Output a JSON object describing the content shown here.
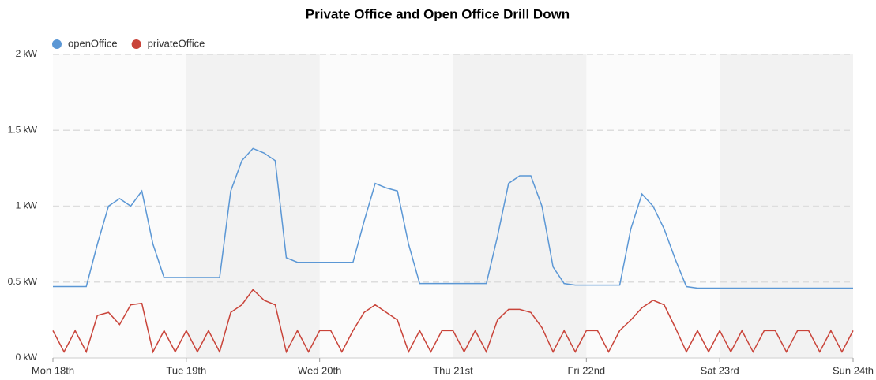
{
  "chart_data": {
    "type": "line",
    "title": "Private Office and Open Office Drill Down",
    "x": [
      0,
      2,
      4,
      6,
      8,
      10,
      12,
      14,
      16,
      18,
      20,
      22,
      24,
      26,
      28,
      30,
      32,
      34,
      36,
      38,
      40,
      42,
      44,
      46,
      48,
      50,
      52,
      54,
      56,
      58,
      60,
      62,
      64,
      66,
      68,
      70,
      72,
      74,
      76,
      78,
      80,
      82,
      84,
      86,
      88,
      90,
      92,
      94,
      96,
      98,
      100,
      102,
      104,
      106,
      108,
      110,
      112,
      114,
      116,
      118,
      120,
      122,
      124,
      126,
      128,
      130,
      132,
      134,
      136,
      138,
      140,
      142,
      144
    ],
    "series": [
      {
        "name": "openOffice",
        "color": "#5b97d5",
        "values": [
          0.47,
          0.47,
          0.47,
          0.47,
          0.75,
          1.0,
          1.05,
          1.0,
          1.1,
          0.75,
          0.53,
          0.53,
          0.53,
          0.53,
          0.53,
          0.53,
          1.1,
          1.3,
          1.38,
          1.35,
          1.3,
          0.66,
          0.63,
          0.63,
          0.63,
          0.63,
          0.63,
          0.63,
          0.9,
          1.15,
          1.12,
          1.1,
          0.75,
          0.49,
          0.49,
          0.49,
          0.49,
          0.49,
          0.49,
          0.49,
          0.8,
          1.15,
          1.2,
          1.2,
          1.0,
          0.6,
          0.49,
          0.48,
          0.48,
          0.48,
          0.48,
          0.48,
          0.85,
          1.08,
          1.0,
          0.85,
          0.65,
          0.47,
          0.46,
          0.46,
          0.46,
          0.46,
          0.46,
          0.46,
          0.46,
          0.46,
          0.46,
          0.46,
          0.46,
          0.46,
          0.46,
          0.46,
          0.46
        ]
      },
      {
        "name": "privateOffice",
        "color": "#c9443a",
        "values": [
          0.18,
          0.04,
          0.18,
          0.04,
          0.28,
          0.3,
          0.22,
          0.35,
          0.36,
          0.04,
          0.18,
          0.04,
          0.18,
          0.04,
          0.18,
          0.04,
          0.3,
          0.35,
          0.45,
          0.38,
          0.35,
          0.04,
          0.18,
          0.04,
          0.18,
          0.18,
          0.04,
          0.18,
          0.3,
          0.35,
          0.3,
          0.25,
          0.04,
          0.18,
          0.04,
          0.18,
          0.18,
          0.04,
          0.18,
          0.04,
          0.25,
          0.32,
          0.32,
          0.3,
          0.2,
          0.04,
          0.18,
          0.04,
          0.18,
          0.18,
          0.04,
          0.18,
          0.25,
          0.33,
          0.38,
          0.35,
          0.2,
          0.04,
          0.18,
          0.04,
          0.18,
          0.04,
          0.18,
          0.04,
          0.18,
          0.18,
          0.04,
          0.18,
          0.18,
          0.04,
          0.18,
          0.04,
          0.18
        ]
      }
    ],
    "xlim": [
      0,
      144
    ],
    "xticks": [
      {
        "value": 0,
        "label": "Mon 18th"
      },
      {
        "value": 24,
        "label": "Tue 19th"
      },
      {
        "value": 48,
        "label": "Wed 20th"
      },
      {
        "value": 72,
        "label": "Thu 21st"
      },
      {
        "value": 96,
        "label": "Fri 22nd"
      },
      {
        "value": 120,
        "label": "Sat 23rd"
      },
      {
        "value": 144,
        "label": "Sun 24th"
      }
    ],
    "ylim": [
      0,
      2
    ],
    "yticks": [
      {
        "value": 0,
        "label": "0 kW"
      },
      {
        "value": 0.5,
        "label": "0.5 kW"
      },
      {
        "value": 1,
        "label": "1 kW"
      },
      {
        "value": 1.5,
        "label": "1.5 kW"
      },
      {
        "value": 2,
        "label": "2 kW"
      }
    ],
    "grid": true,
    "legend": "top-left"
  }
}
